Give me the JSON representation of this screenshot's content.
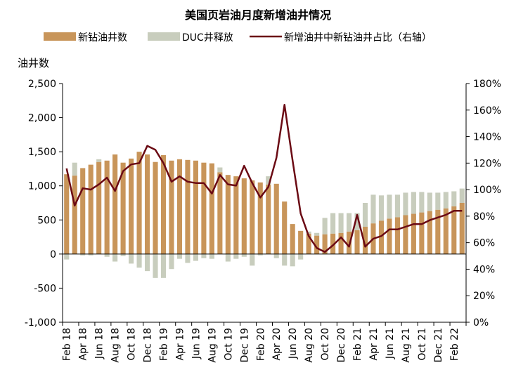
{
  "chart_data": {
    "type": "bar",
    "title": "美国页岩油月度新增油井情况",
    "ylabel": "油井数",
    "ylim": [
      -1000,
      2500
    ],
    "yticks": [
      -1000,
      -500,
      0,
      500,
      1000,
      1500,
      2000,
      2500
    ],
    "ytick_labels": [
      "-1,000",
      "-500",
      "0",
      "500",
      "1,000",
      "1,500",
      "2,000",
      "2,500"
    ],
    "y2lim": [
      0,
      180
    ],
    "y2ticks": [
      0,
      20,
      40,
      60,
      80,
      100,
      120,
      140,
      160,
      180
    ],
    "y2tick_labels": [
      "0%",
      "20%",
      "40%",
      "60%",
      "80%",
      "100%",
      "120%",
      "140%",
      "160%",
      "180%"
    ],
    "xtick_labels": [
      "Feb 18",
      "Apr 18",
      "Jun 18",
      "Aug 18",
      "Oct 18",
      "Dec 18",
      "Feb 19",
      "Apr 19",
      "Jun 19",
      "Aug 19",
      "Oct 19",
      "Dec 19",
      "Feb 20",
      "Apr 20",
      "Jun 20",
      "Aug 20",
      "Oct 20",
      "Dec 20",
      "Feb 21",
      "Apr 21",
      "Jun 21",
      "Aug 21",
      "Oct 21",
      "Dec 21",
      "Feb 22"
    ],
    "categories": [
      "2018-01",
      "2018-02",
      "2018-03",
      "2018-04",
      "2018-05",
      "2018-06",
      "2018-07",
      "2018-08",
      "2018-09",
      "2018-10",
      "2018-11",
      "2018-12",
      "2019-01",
      "2019-02",
      "2019-03",
      "2019-04",
      "2019-05",
      "2019-06",
      "2019-07",
      "2019-08",
      "2019-09",
      "2019-10",
      "2019-11",
      "2019-12",
      "2020-01",
      "2020-02",
      "2020-03",
      "2020-04",
      "2020-05",
      "2020-06",
      "2020-07",
      "2020-08",
      "2020-09",
      "2020-10",
      "2020-11",
      "2020-12",
      "2021-01",
      "2021-02",
      "2021-03",
      "2021-04",
      "2021-05",
      "2021-06",
      "2021-07",
      "2021-08",
      "2021-09",
      "2021-10",
      "2021-11",
      "2021-12",
      "2022-01",
      "2022-02"
    ],
    "legend_position": "top",
    "series": [
      {
        "name": "新钻油井数",
        "type": "bar",
        "axis": "left",
        "color": "#c8955a",
        "values": [
          1170,
          1150,
          1260,
          1310,
          1350,
          1370,
          1460,
          1340,
          1400,
          1500,
          1460,
          1350,
          1450,
          1370,
          1390,
          1380,
          1370,
          1340,
          1330,
          1200,
          1160,
          1140,
          1110,
          1080,
          1050,
          1020,
          1030,
          770,
          440,
          340,
          300,
          270,
          290,
          300,
          310,
          330,
          350,
          400,
          450,
          490,
          520,
          540,
          570,
          590,
          610,
          630,
          650,
          670,
          700,
          750
        ]
      },
      {
        "name": "DUC井释放",
        "type": "bar",
        "axis": "left",
        "color": "#c8cdbd",
        "values": [
          -80,
          190,
          -20,
          -20,
          40,
          -40,
          -110,
          -30,
          -140,
          -200,
          -250,
          -350,
          -350,
          -220,
          -70,
          -130,
          -100,
          -60,
          -70,
          70,
          -110,
          -70,
          -40,
          -170,
          -20,
          120,
          -60,
          -170,
          -180,
          -80,
          30,
          40,
          240,
          300,
          290,
          270,
          250,
          350,
          420,
          370,
          350,
          330,
          330,
          320,
          300,
          270,
          250,
          240,
          220,
          210
        ]
      },
      {
        "name": "新增油井中新钻油井占比（右轴）",
        "type": "line",
        "axis": "right",
        "color": "#6b0a14",
        "values": [
          116,
          88,
          101,
          100,
          104,
          109,
          99,
          114,
          119,
          120,
          133,
          130,
          120,
          106,
          110,
          106,
          105,
          105,
          97,
          111,
          104,
          103,
          118,
          105,
          94,
          102,
          124,
          164,
          122,
          82,
          65,
          56,
          53,
          58,
          64,
          57,
          81,
          57,
          63,
          65,
          70,
          70,
          72,
          74,
          74,
          77,
          79,
          81,
          84,
          84
        ]
      }
    ]
  }
}
